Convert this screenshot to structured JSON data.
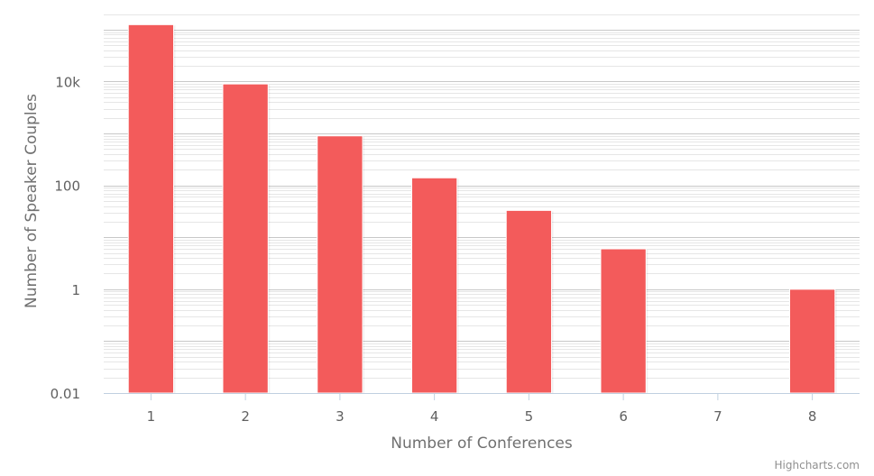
{
  "chart_data": {
    "type": "bar",
    "categories": [
      "1",
      "2",
      "3",
      "4",
      "5",
      "6",
      "7",
      "8"
    ],
    "values": [
      125000,
      9000,
      900,
      140,
      33,
      6,
      null,
      1
    ],
    "xlabel": "Number of Conferences",
    "ylabel": "Number of Speaker Couples",
    "y_scale": "log",
    "ylim": [
      0.01,
      250000
    ],
    "y_tick_values": [
      0.01,
      1,
      100,
      10000
    ],
    "y_tick_labels": [
      "0.01",
      "1",
      "100",
      "10k"
    ],
    "grid": true,
    "legend": "none",
    "bar_color": "#f35b5b",
    "credits": "Highcharts.com"
  }
}
